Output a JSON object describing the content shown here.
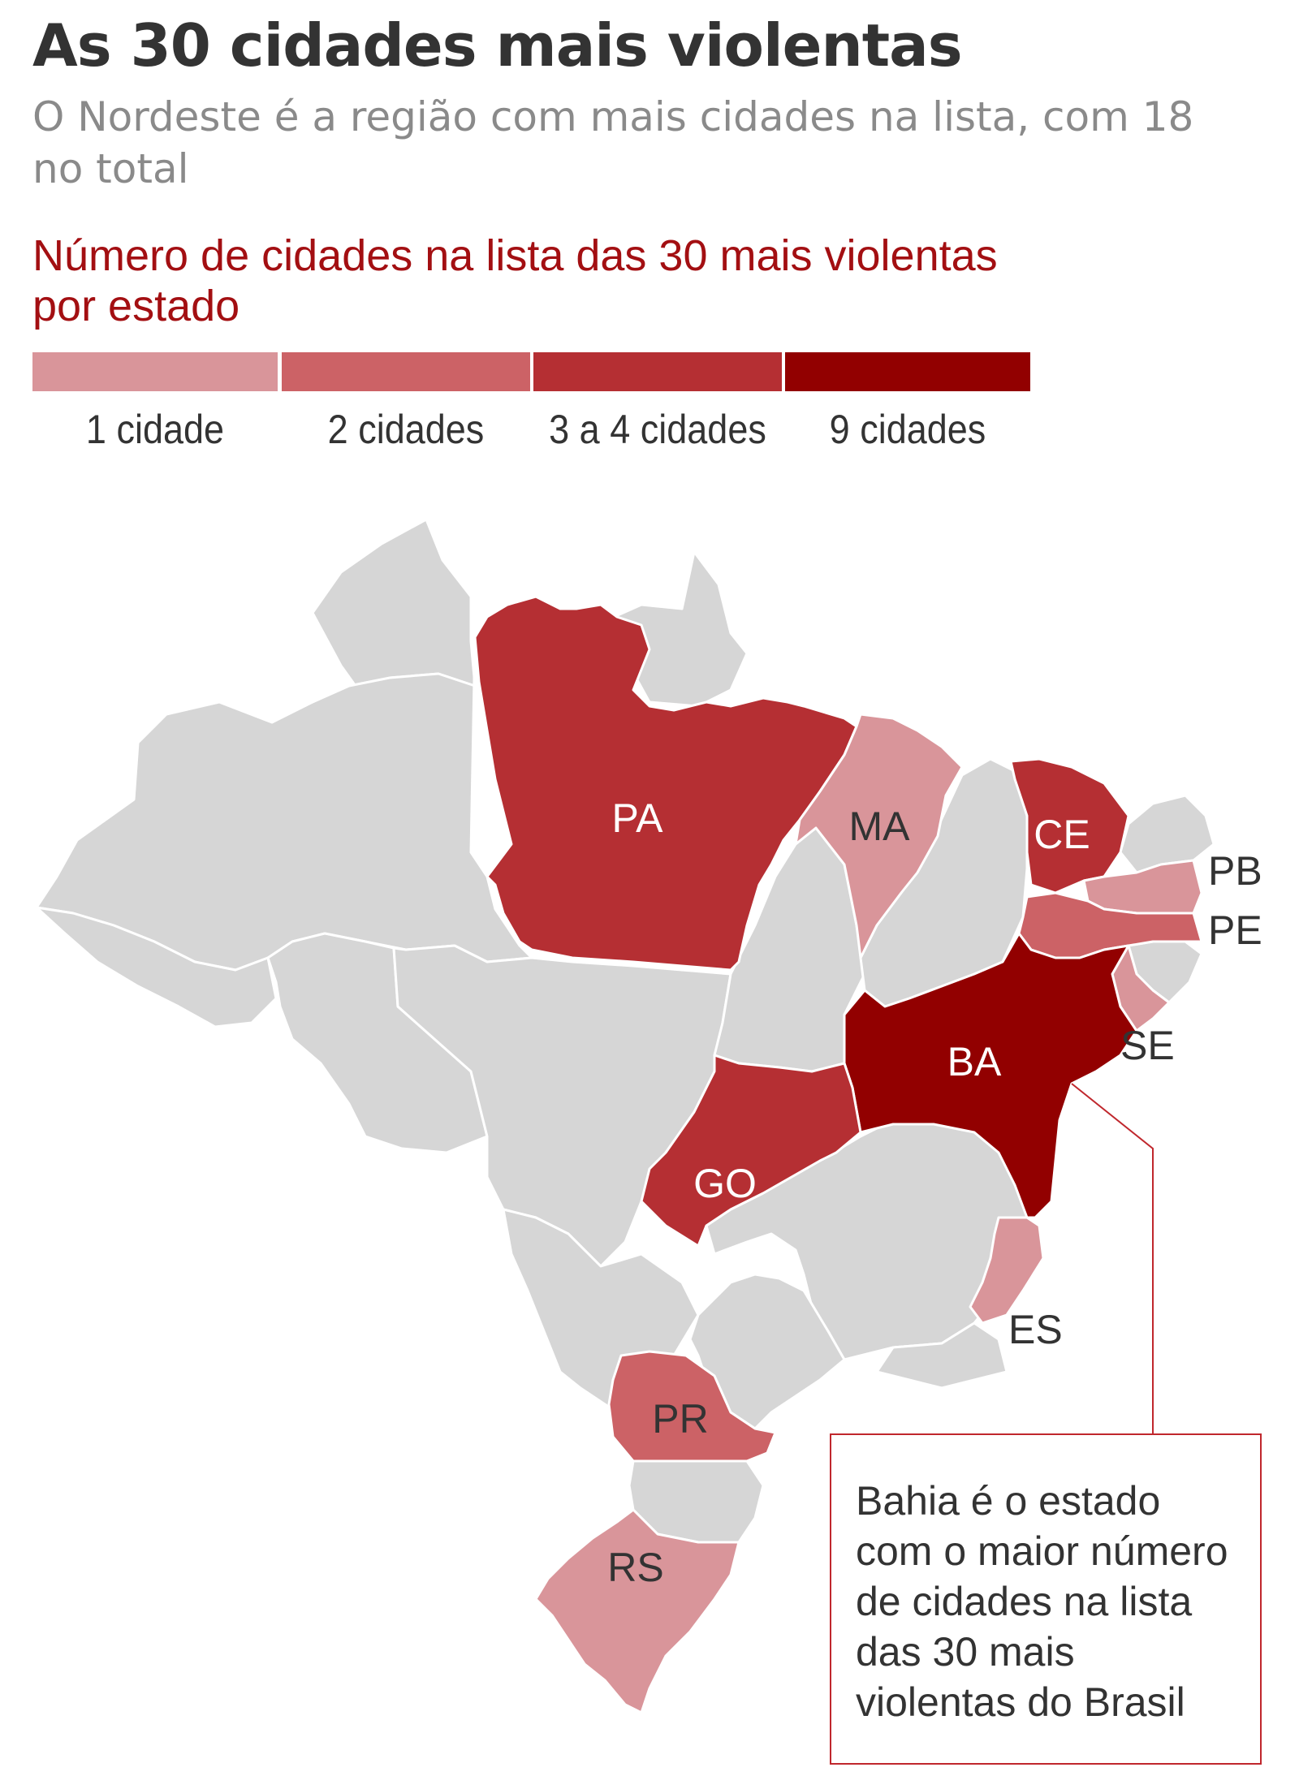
{
  "title": "As 30 cidades mais violentas",
  "subtitle": "O Nordeste é a região com mais cidades na lista, com 18 no total",
  "legend": {
    "title": "Número de cidades na lista das 30 mais violentas por estado",
    "items": [
      {
        "label": "1 cidade",
        "color": "#d9959a"
      },
      {
        "label": "2 cidades",
        "color": "#cc6266"
      },
      {
        "label": "3 a 4 cidades",
        "color": "#b52f33"
      },
      {
        "label": "9 cidades",
        "color": "#920000"
      }
    ]
  },
  "map": {
    "base_color": "#d6d6d6",
    "border_color": "#ffffff",
    "states": [
      {
        "abbr": "PA",
        "category": "3 a 4 cidades",
        "color": "#b52f33"
      },
      {
        "abbr": "MA",
        "category": "1 cidade",
        "color": "#d9959a"
      },
      {
        "abbr": "CE",
        "category": "3 a 4 cidades",
        "color": "#b52f33"
      },
      {
        "abbr": "PB",
        "category": "1 cidade",
        "color": "#d9959a"
      },
      {
        "abbr": "PE",
        "category": "2 cidades",
        "color": "#cc6266"
      },
      {
        "abbr": "SE",
        "category": "1 cidade",
        "color": "#d9959a"
      },
      {
        "abbr": "BA",
        "category": "9 cidades",
        "color": "#920000"
      },
      {
        "abbr": "GO",
        "category": "3 a 4 cidades",
        "color": "#b52f33"
      },
      {
        "abbr": "ES",
        "category": "1 cidade",
        "color": "#d9959a"
      },
      {
        "abbr": "PR",
        "category": "2 cidades",
        "color": "#cc6266"
      },
      {
        "abbr": "RS",
        "category": "1 cidade",
        "color": "#d9959a"
      }
    ]
  },
  "callout": {
    "text": "Bahia é o estado com o maior número de cidades na lista das 30 mais violentas do Brasil",
    "border_color": "#c0272d"
  }
}
